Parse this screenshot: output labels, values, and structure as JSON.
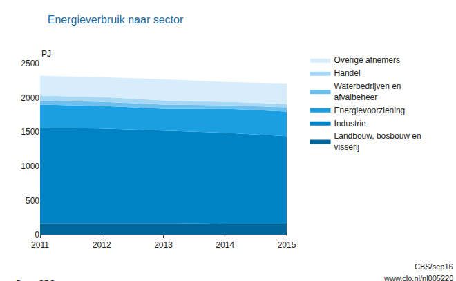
{
  "chart_data": {
    "type": "area",
    "stacked": true,
    "title": "Energieverbruik naar sector",
    "ylabel": "PJ",
    "annotations": [
      "Bron: CBS",
      "CBS/sep16",
      "www.clo.nl/nl005220"
    ],
    "x": [
      2011,
      2012,
      2013,
      2014,
      2015
    ],
    "xlim": [
      2011,
      2015
    ],
    "xticks": [
      2011,
      2012,
      2013,
      2014,
      2015
    ],
    "ylim": [
      0,
      2500
    ],
    "yticks": [
      0,
      500,
      1000,
      1500,
      2000,
      2500
    ],
    "grid": false,
    "legend": "right",
    "series": [
      {
        "name": "Landbouw, bosbouw en visserij",
        "color": "#00679c",
        "values": [
          170,
          170,
          170,
          160,
          160
        ]
      },
      {
        "name": "Industrie",
        "color": "#0083c4",
        "values": [
          1390,
          1380,
          1350,
          1330,
          1280
        ]
      },
      {
        "name": "Energievoorziening",
        "color": "#1aa0e2",
        "values": [
          340,
          330,
          320,
          350,
          360
        ]
      },
      {
        "name": "Waterbedrijven en afvalbeheer",
        "color": "#6dc0ee",
        "values": [
          60,
          60,
          60,
          50,
          60
        ]
      },
      {
        "name": "Handel",
        "color": "#a8d7f4",
        "values": [
          70,
          70,
          60,
          50,
          50
        ]
      },
      {
        "name": "Overige afnemers",
        "color": "#d8edfb",
        "values": [
          290,
          290,
          310,
          290,
          300
        ]
      }
    ]
  }
}
